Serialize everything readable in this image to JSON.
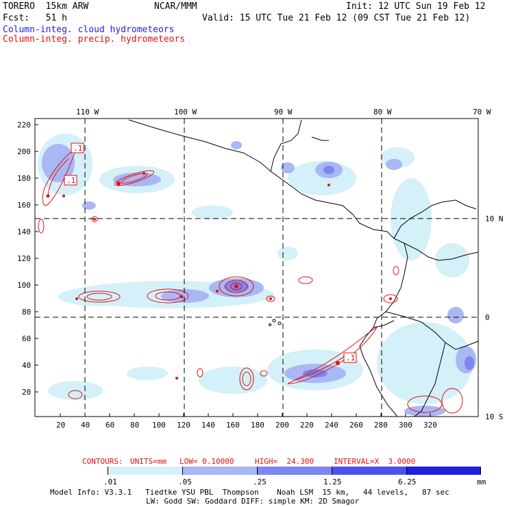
{
  "header": {
    "model": "TORERO  15km ARW",
    "center": "NCAR/MMM",
    "init": "Init: 12 UTC Sun 19 Feb 12",
    "fcst": "Fcst:   51 h",
    "valid": "Valid: 15 UTC Tue 21 Feb 12 (09 CST Tue 21 Feb 12)",
    "field1": "Column-integ. cloud hydrometeors",
    "field2": "Column-integ. precip. hydrometeors"
  },
  "map": {
    "lon_labels": [
      "110 W",
      "100 W",
      "90 W",
      "80 W",
      "70 W"
    ],
    "lat_labels": [
      "10 N",
      "0",
      "10 S"
    ],
    "y_ticks": [
      "220",
      "200",
      "180",
      "160",
      "140",
      "120",
      "100",
      "80",
      "60",
      "40",
      "20"
    ],
    "x_ticks": [
      "20",
      "40",
      "60",
      "80",
      "100",
      "120",
      "140",
      "160",
      "180",
      "200",
      "220",
      "240",
      "260",
      "280",
      "300",
      "320"
    ],
    "low_labels": [
      ".1",
      ".1",
      ".1"
    ],
    "colors": {
      "cloud_light": "#d4f0f8",
      "cloud_mid": "#a9b7f4",
      "cloud_strong": "#7d86ee",
      "precip": "#e01010",
      "coast": "#000000"
    }
  },
  "contours": {
    "label": "CONTOURS:",
    "units": "UNITS=mm",
    "low": "LOW= 0.10000",
    "high": "HIGH=  24.300",
    "interval": "INTERVAL=X  3.0000"
  },
  "colorbar": {
    "labels": [
      ".01",
      ".05",
      ".25",
      "1.25",
      "6.25"
    ],
    "unit": "mm",
    "colors": [
      "#ffffff",
      "#d4f0f8",
      "#a9b7f4",
      "#7d86ee",
      "#5050ea",
      "#2020e0"
    ]
  },
  "footer": {
    "line1": "Model Info: V3.3.1   Tiedtke YSU PBL  Thompson    Noah LSM  15 km,   44 levels,   87 sec",
    "line2": "LW: Godd SW: Goddard DIFF: simple KM: 2D Smagor"
  }
}
